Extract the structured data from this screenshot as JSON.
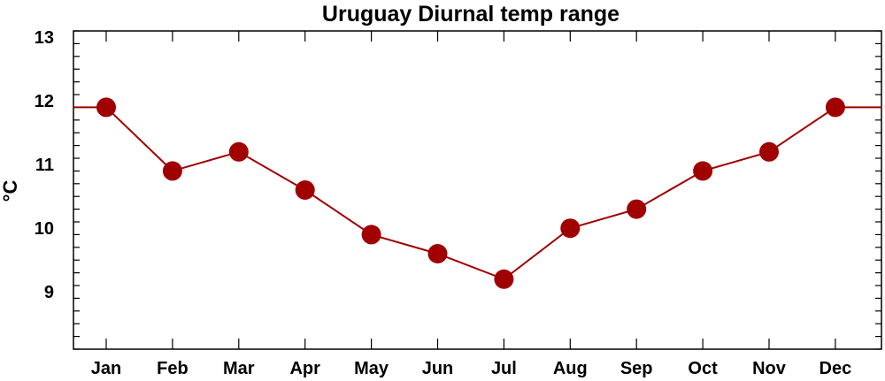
{
  "chart_data": {
    "type": "line",
    "title": "Uruguay Diurnal temp range",
    "xlabel": "",
    "ylabel": "°C",
    "categories": [
      "Jan",
      "Feb",
      "Mar",
      "Apr",
      "May",
      "Jun",
      "Jul",
      "Aug",
      "Sep",
      "Oct",
      "Nov",
      "Dec"
    ],
    "values": [
      11.9,
      10.9,
      11.2,
      10.6,
      9.9,
      9.6,
      9.2,
      10.0,
      10.3,
      10.9,
      11.2,
      11.9
    ],
    "ylim": [
      8.1,
      13.1
    ],
    "y_ticks": [
      9,
      10,
      11,
      12,
      13
    ],
    "y_minor_step": 0.2,
    "grid": false,
    "legend": "none",
    "colors": {
      "series": "#a00000",
      "axis": "#000000"
    },
    "wrap_ends": true
  }
}
